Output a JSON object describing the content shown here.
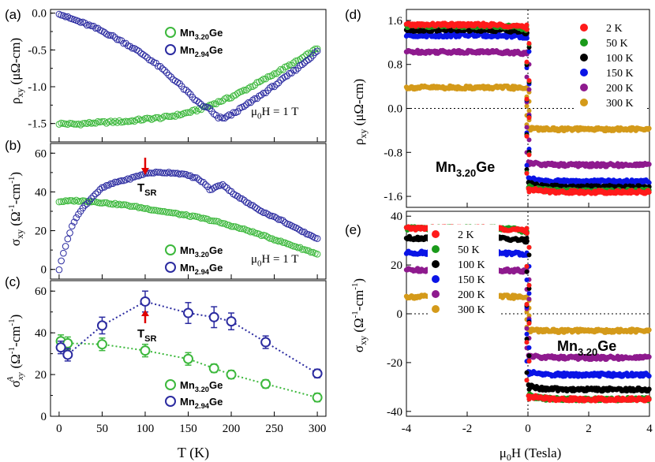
{
  "figure": {
    "panel_a": {
      "tag": "(a)",
      "ylabel": "ρxy (μΩ-cm)",
      "ylim": [
        -1.75,
        0.05
      ],
      "yticks": [
        0.0,
        -0.5,
        -1.0,
        -1.5
      ],
      "ytick_labels": [
        "0.0",
        "-0.5",
        "-1.0",
        "-1.5"
      ],
      "field_note": "μ0H = 1 T",
      "legend": [
        "Mn3.20Ge",
        "Mn2.94Ge"
      ]
    },
    "panel_b": {
      "tag": "(b)",
      "ylabel": "σxy (Ω-1-cm-1)",
      "ylim": [
        -5,
        65
      ],
      "yticks": [
        0,
        20,
        40,
        60
      ],
      "ytick_labels": [
        "0",
        "20",
        "40",
        "60"
      ],
      "field_note": "μ0H = 1 T",
      "annotation": "TSR",
      "legend": [
        "Mn3.20Ge",
        "Mn2.94Ge"
      ]
    },
    "panel_c": {
      "tag": "(c)",
      "ylabel": "σAxy (Ω-1-cm-1)",
      "ylim": [
        0,
        65
      ],
      "yticks": [
        0,
        20,
        40,
        60
      ],
      "ytick_labels": [
        "0",
        "20",
        "40",
        "60"
      ],
      "xlabel": "T (K)",
      "xlim": [
        -10,
        310
      ],
      "xticks": [
        0,
        50,
        100,
        150,
        200,
        250,
        300
      ],
      "xtick_labels": [
        "0",
        "50",
        "100",
        "150",
        "200",
        "250",
        "300"
      ],
      "annotation": "TSR",
      "legend": [
        "Mn3.20Ge",
        "Mn2.94Ge"
      ]
    },
    "panel_d": {
      "tag": "(d)",
      "ylabel": "ρxy (μΩ-cm)",
      "ylim": [
        -1.8,
        1.8
      ],
      "yticks": [
        1.6,
        0.8,
        0.0,
        -0.8,
        -1.6
      ],
      "ytick_labels": [
        "1.6",
        "0.8",
        "0.0",
        "-0.8",
        "-1.6"
      ],
      "sample": "Mn3.20Ge"
    },
    "panel_e": {
      "tag": "(e)",
      "ylabel": "σxy (Ω-1-cm-1)",
      "ylim": [
        -42,
        42
      ],
      "yticks": [
        40,
        20,
        0,
        -20,
        -40
      ],
      "ytick_labels": [
        "40",
        "20",
        "0",
        "-20",
        "-40"
      ],
      "xlabel": "μ0H (Tesla)",
      "xlim": [
        -4,
        4
      ],
      "xticks": [
        -4,
        -2,
        0,
        2,
        4
      ],
      "xtick_labels": [
        "-4",
        "-2",
        "0",
        "2",
        "4"
      ],
      "sample": "Mn3.20Ge"
    },
    "temperature_legend": [
      "2 K",
      "50 K",
      "100 K",
      "150 K",
      "200 K",
      "300 K"
    ]
  },
  "colors": {
    "mn320": "#3cb83c",
    "mn294": "#2b2ba0",
    "arrow": "#e00000",
    "t2": "#ff1a1a",
    "t50": "#1a9a1a",
    "t100": "#000000",
    "t150": "#0a14e6",
    "t200": "#8e1a8e",
    "t300": "#d49a1a"
  },
  "chart_data": [
    {
      "panel": "a",
      "type": "scatter",
      "title": "",
      "xlabel": "T (K)",
      "ylabel": "ρxy (μΩ-cm)",
      "xlim": [
        -10,
        310
      ],
      "ylim": [
        -1.75,
        0.05
      ],
      "series": [
        {
          "name": "Mn3.20Ge",
          "x": [
            0,
            20,
            40,
            60,
            80,
            100,
            120,
            140,
            160,
            180,
            200,
            220,
            240,
            260,
            280,
            300
          ],
          "values": [
            -1.5,
            -1.51,
            -1.49,
            -1.48,
            -1.47,
            -1.44,
            -1.42,
            -1.38,
            -1.32,
            -1.23,
            -1.14,
            -1.02,
            -0.89,
            -0.76,
            -0.63,
            -0.48
          ]
        },
        {
          "name": "Mn2.94Ge",
          "x": [
            0,
            10,
            20,
            40,
            60,
            80,
            100,
            120,
            140,
            160,
            170,
            175,
            180,
            185,
            190,
            200,
            220,
            240,
            260,
            280,
            300
          ],
          "values": [
            0.0,
            -0.06,
            -0.1,
            -0.19,
            -0.3,
            -0.43,
            -0.58,
            -0.76,
            -0.97,
            -1.2,
            -1.28,
            -1.3,
            -1.38,
            -1.42,
            -1.43,
            -1.38,
            -1.23,
            -1.07,
            -0.9,
            -0.72,
            -0.52
          ]
        }
      ]
    },
    {
      "panel": "b",
      "type": "scatter",
      "title": "",
      "xlabel": "T (K)",
      "ylabel": "σxy (Ω-1-cm-1)",
      "xlim": [
        -10,
        310
      ],
      "ylim": [
        -5,
        65
      ],
      "series": [
        {
          "name": "Mn3.20Ge",
          "x": [
            0,
            20,
            40,
            60,
            80,
            100,
            120,
            140,
            160,
            180,
            200,
            220,
            240,
            260,
            280,
            300
          ],
          "values": [
            35,
            35.5,
            35,
            34,
            33,
            31.5,
            30,
            28.5,
            27,
            25,
            22.5,
            20,
            17,
            14,
            11,
            8
          ]
        },
        {
          "name": "Mn2.94Ge",
          "x": [
            0,
            3,
            6,
            10,
            15,
            20,
            30,
            40,
            50,
            60,
            70,
            80,
            90,
            100,
            110,
            120,
            130,
            140,
            150,
            160,
            170,
            175,
            180,
            190,
            200,
            220,
            240,
            260,
            280,
            300
          ],
          "values": [
            0,
            5,
            10,
            16,
            22,
            27,
            33,
            38,
            42,
            44,
            45.5,
            46.5,
            48,
            49.5,
            50,
            50,
            50,
            49.5,
            48.5,
            47,
            44,
            41,
            42,
            44,
            40,
            34,
            29,
            25,
            20,
            16
          ]
        }
      ]
    },
    {
      "panel": "c",
      "type": "line",
      "title": "",
      "xlabel": "T (K)",
      "ylabel": "σAxy (Ω-1-cm-1)",
      "xlim": [
        -10,
        310
      ],
      "ylim": [
        0,
        65
      ],
      "series": [
        {
          "name": "Mn3.20Ge",
          "x": [
            2,
            10,
            50,
            100,
            150,
            180,
            200,
            240,
            300
          ],
          "values": [
            36,
            35,
            34.5,
            31.5,
            27.5,
            23,
            20,
            15.5,
            9
          ],
          "errors": [
            3,
            3,
            3,
            3,
            3,
            2,
            2,
            2,
            2
          ]
        },
        {
          "name": "Mn2.94Ge",
          "x": [
            2,
            10,
            50,
            100,
            150,
            180,
            200,
            240,
            300
          ],
          "values": [
            33,
            29.5,
            43.5,
            55,
            49.5,
            47.5,
            45.5,
            35.5,
            20.5
          ],
          "errors": [
            3,
            3,
            4,
            5,
            5,
            5,
            4,
            3,
            2
          ]
        }
      ]
    },
    {
      "panel": "d",
      "type": "scatter",
      "title": "Mn3.20Ge",
      "xlabel": "μ0H (Tesla)",
      "ylabel": "ρxy (μΩ-cm)",
      "xlim": [
        -4,
        4
      ],
      "ylim": [
        -1.8,
        1.8
      ],
      "series": [
        {
          "name": "2 K",
          "plateau": 1.52
        },
        {
          "name": "50 K",
          "plateau": 1.5
        },
        {
          "name": "100 K",
          "plateau": 1.43
        },
        {
          "name": "150 K",
          "plateau": 1.33
        },
        {
          "name": "200 K",
          "plateau": 1.03
        },
        {
          "name": "300 K",
          "plateau": 0.38
        }
      ]
    },
    {
      "panel": "e",
      "type": "scatter",
      "title": "Mn3.20Ge",
      "xlabel": "μ0H (Tesla)",
      "ylabel": "σxy (Ω-1-cm-1)",
      "xlim": [
        -4,
        4
      ],
      "ylim": [
        -42,
        42
      ],
      "series": [
        {
          "name": "2 K",
          "plateau": 35
        },
        {
          "name": "50 K",
          "plateau": 35
        },
        {
          "name": "100 K",
          "plateau": 31
        },
        {
          "name": "150 K",
          "plateau": 25
        },
        {
          "name": "200 K",
          "plateau": 18
        },
        {
          "name": "300 K",
          "plateau": 7
        }
      ]
    }
  ]
}
